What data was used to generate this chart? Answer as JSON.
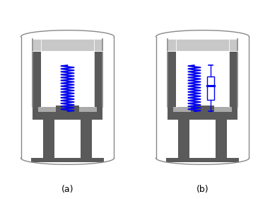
{
  "bg_color": "#ffffff",
  "dark_gray": "#5a5a5a",
  "light_gray": "#c8c8c8",
  "medium_gray": "#aaaaaa",
  "wall_gray": "#888888",
  "blue": "#0000ee",
  "label_a": "(a)",
  "label_b": "(b)",
  "label_fontsize": 9,
  "fig_width": 3.82,
  "fig_height": 2.81,
  "dpi": 100
}
